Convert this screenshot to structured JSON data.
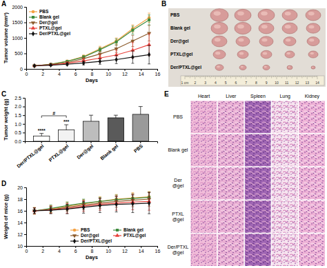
{
  "panel_labels": [
    "A",
    "B",
    "C",
    "D",
    "E"
  ],
  "chart_data": [
    {
      "type": "line",
      "x_label": "Days",
      "y_label": "Tumor volume (mm³)",
      "x": [
        1,
        3,
        5,
        7,
        9,
        11,
        13,
        15
      ],
      "xlim": [
        0,
        16
      ],
      "xticks": [
        0,
        2,
        4,
        6,
        8,
        10,
        12,
        14,
        16
      ],
      "ylim": [
        0,
        2000
      ],
      "yticks": [
        0,
        500,
        1000,
        1500,
        2000
      ],
      "legend": "upper left",
      "series": [
        {
          "name": "PBS",
          "color": "#f4a142",
          "marker": "circle",
          "values": [
            100,
            150,
            250,
            400,
            650,
            900,
            1300,
            1650
          ],
          "errors": [
            10,
            15,
            30,
            50,
            80,
            100,
            120,
            150
          ]
        },
        {
          "name": "Blank gel",
          "color": "#3d8b3d",
          "marker": "square",
          "values": [
            100,
            150,
            240,
            380,
            620,
            870,
            1250,
            1580
          ],
          "errors": [
            10,
            15,
            30,
            50,
            70,
            100,
            130,
            160
          ]
        },
        {
          "name": "Der@gel",
          "color": "#8b5a2b",
          "marker": "triangle-down",
          "values": [
            100,
            140,
            200,
            330,
            480,
            650,
            900,
            1150
          ],
          "errors": [
            10,
            20,
            30,
            50,
            80,
            120,
            180,
            250
          ]
        },
        {
          "name": "PTXL@gel",
          "color": "#e8403a",
          "marker": "triangle-up",
          "values": [
            100,
            130,
            180,
            260,
            350,
            450,
            600,
            780
          ],
          "errors": [
            10,
            20,
            40,
            60,
            100,
            150,
            250,
            350
          ]
        },
        {
          "name": "Der/PTXL@gel",
          "color": "#111111",
          "marker": "diamond",
          "values": [
            100,
            120,
            150,
            190,
            240,
            300,
            380,
            460
          ],
          "errors": [
            10,
            20,
            40,
            60,
            90,
            130,
            200,
            300
          ]
        }
      ]
    },
    {
      "type": "bar",
      "y_label": "Tumor weight (g)",
      "categories": [
        "Der/PTXL@gel",
        "PTXL@gel",
        "Der@gel",
        "Blank gel",
        "PBS"
      ],
      "values": [
        0.3,
        0.65,
        1.15,
        1.35,
        1.55
      ],
      "errors": [
        0.15,
        0.3,
        0.35,
        0.15,
        0.45
      ],
      "colors": [
        "#ffffff",
        "#f2f2f2",
        "#bdbdbd",
        "#5a5a5a",
        "#9a9a9a"
      ],
      "ylim": [
        0,
        2.5
      ],
      "yticks": [
        {
          "value": 0,
          "label": "0.0"
        },
        {
          "value": 0.5,
          "label": "0.5"
        },
        {
          "value": 1,
          "label": "1.0"
        },
        {
          "value": 1.5,
          "label": "1.5"
        },
        {
          "value": 2,
          "label": "2.0"
        },
        {
          "value": 2.5,
          "label": "2.5"
        }
      ],
      "annotations": [
        {
          "text": "****",
          "at": "Der/PTXL@gel"
        },
        {
          "text": "***",
          "at": "PTXL@gel"
        },
        {
          "text": "#",
          "from": "Der/PTXL@gel",
          "to": "PTXL@gel"
        }
      ]
    },
    {
      "type": "line",
      "x_label": "Days",
      "y_label": "Weight of mice (g)",
      "x": [
        1,
        3,
        5,
        7,
        9,
        11,
        13,
        15
      ],
      "xlim": [
        0,
        16
      ],
      "xticks": [
        0,
        2,
        4,
        6,
        8,
        10,
        12,
        14,
        16
      ],
      "ylim": [
        10,
        20
      ],
      "yticks": [
        10,
        12,
        14,
        16,
        18,
        20
      ],
      "legend": "lower right",
      "series": [
        {
          "name": "PBS",
          "color": "#f4a142",
          "marker": "circle",
          "values": [
            16,
            16.3,
            16.8,
            17.2,
            17.6,
            18,
            18.2,
            18.4
          ],
          "errors": [
            0.6,
            0.6,
            0.7,
            0.7,
            0.8,
            0.8,
            0.9,
            0.9
          ]
        },
        {
          "name": "Blank gel",
          "color": "#3d8b3d",
          "marker": "square",
          "values": [
            16,
            16.4,
            16.9,
            17.3,
            17.6,
            17.9,
            18.1,
            18.3
          ],
          "errors": [
            0.5,
            0.6,
            0.6,
            0.7,
            0.7,
            0.8,
            0.8,
            0.9
          ]
        },
        {
          "name": "Der@gel",
          "color": "#8b5a2b",
          "marker": "triangle-down",
          "values": [
            16,
            16.2,
            16.6,
            17,
            17.3,
            17.6,
            17.8,
            18
          ],
          "errors": [
            0.5,
            0.6,
            0.7,
            0.8,
            0.9,
            1,
            1.1,
            1.2
          ]
        },
        {
          "name": "PTXL@gel",
          "color": "#e8403a",
          "marker": "triangle-up",
          "values": [
            16,
            16.2,
            16.4,
            16.8,
            17.1,
            17.3,
            17.5,
            17.6
          ],
          "errors": [
            0.5,
            0.6,
            0.8,
            0.9,
            1,
            1.2,
            1.3,
            1.5
          ]
        },
        {
          "name": "Der/PTXL@gel",
          "color": "#111111",
          "marker": "diamond",
          "values": [
            16,
            16.1,
            16.3,
            16.6,
            16.9,
            17.1,
            17.2,
            17.3
          ],
          "errors": [
            0.5,
            0.6,
            0.8,
            1,
            1.2,
            1.3,
            1.5,
            1.8
          ]
        }
      ]
    }
  ],
  "photo": {
    "row_labels": [
      "PBS",
      "Blank gel",
      "Der@gel",
      "PTXL@gel",
      "Der/PTXL@gel"
    ],
    "ruler_labels": [
      "1 cm",
      "2",
      "3",
      "4",
      "5",
      "6",
      "7",
      "8",
      "9",
      "10",
      "11",
      "12",
      "13",
      "14"
    ]
  },
  "histology": {
    "columns": [
      "Heart",
      "Liver",
      "Spleen",
      "Lung",
      "Kidney"
    ],
    "row_labels": [
      [
        "PBS"
      ],
      [
        "Blank gel"
      ],
      [
        "Der",
        "@gel"
      ],
      [
        "PTXL",
        "@gel"
      ],
      [
        "Der/PTXL",
        "@gel"
      ]
    ]
  }
}
